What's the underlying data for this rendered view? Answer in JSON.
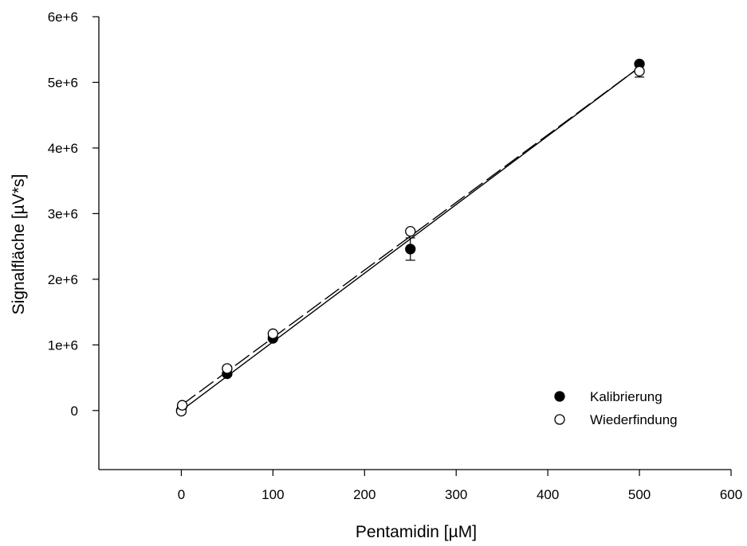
{
  "chart_data": {
    "type": "scatter",
    "xlabel": "Pentamidin [µM]",
    "ylabel": "Signalfläche [µV*s]",
    "xlim": [
      -90,
      600
    ],
    "ylim": [
      -900000,
      6000000
    ],
    "x_ticks": [
      0,
      100,
      200,
      300,
      400,
      500,
      600
    ],
    "x_tick_labels": [
      "0",
      "100",
      "200",
      "300",
      "400",
      "500",
      "600"
    ],
    "y_ticks": [
      0,
      1000000,
      2000000,
      3000000,
      4000000,
      5000000,
      6000000
    ],
    "y_tick_labels": [
      "0",
      "1e+6",
      "2e+6",
      "3e+6",
      "4e+6",
      "5e+6",
      "6e+6"
    ],
    "grid": false,
    "legend_position": "bottom-right",
    "series": [
      {
        "name": "Kalibrierung",
        "marker": "filled-circle",
        "color": "#000000",
        "x": [
          0,
          1,
          50,
          100,
          250,
          500
        ],
        "y": [
          0,
          70000,
          560000,
          1100000,
          2460000,
          5280000
        ],
        "y_err": [
          0,
          0,
          20000,
          25000,
          170000,
          20000
        ],
        "fit": {
          "line_style": "solid",
          "x0": 0,
          "y0": 0,
          "x1": 500,
          "y1": 5230000
        }
      },
      {
        "name": "Wiederfindung",
        "marker": "open-circle",
        "color": "#000000",
        "x": [
          0,
          1,
          50,
          100,
          250,
          500
        ],
        "y": [
          -10000,
          80000,
          640000,
          1170000,
          2730000,
          5170000
        ],
        "y_err": [
          0,
          0,
          20000,
          25000,
          30000,
          90000
        ],
        "fit": {
          "line_style": "dashed",
          "x0": 0,
          "y0": 80000,
          "x1": 500,
          "y1": 5230000
        }
      }
    ]
  }
}
